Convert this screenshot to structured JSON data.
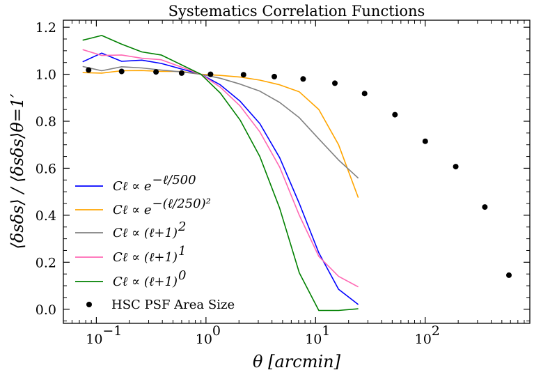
{
  "chart_data": {
    "type": "line",
    "title": "Systematics Correlation Functions",
    "xlabel": "θ [arcmin]",
    "ylabel": "⟨δsδs⟩ / ⟨δsδs⟩θ=1′",
    "x_scale": "log",
    "xlim": [
      0.05,
      900
    ],
    "ylim": [
      -0.06,
      1.23
    ],
    "x_ticks": [
      {
        "value": 0.1,
        "base": "10",
        "exp": "−1"
      },
      {
        "value": 1,
        "base": "10",
        "exp": "0"
      },
      {
        "value": 10,
        "base": "10",
        "exp": "1"
      },
      {
        "value": 100,
        "base": "10",
        "exp": "2"
      }
    ],
    "y_ticks": [
      {
        "value": 0.0,
        "label": "0.0"
      },
      {
        "value": 0.2,
        "label": "0.2"
      },
      {
        "value": 0.4,
        "label": "0.4"
      },
      {
        "value": 0.6,
        "label": "0.6"
      },
      {
        "value": 0.8,
        "label": "0.8"
      },
      {
        "value": 1.0,
        "label": "1.0"
      },
      {
        "value": 1.2,
        "label": "1.2"
      }
    ],
    "grid": false,
    "legend_position": "lower-left",
    "series": [
      {
        "name": "C_ℓ ∝ e^{−ℓ/500}",
        "legend": {
          "main": "Cℓ ∝ e",
          "sup": "−ℓ/500"
        },
        "color": "#0000ff",
        "style": "line",
        "x": [
          0.075,
          0.112,
          0.17,
          0.26,
          0.39,
          0.6,
          0.9,
          1.35,
          2.05,
          3.1,
          4.7,
          7.1,
          10.7,
          16.2,
          24.5
        ],
        "y": [
          1.053,
          1.09,
          1.055,
          1.06,
          1.046,
          1.022,
          1.0,
          0.955,
          0.885,
          0.79,
          0.645,
          0.45,
          0.24,
          0.085,
          0.02
        ]
      },
      {
        "name": "C_ℓ ∝ e^{−(ℓ/250)^2}",
        "legend": {
          "main": "Cℓ ∝ e",
          "sup": "−(ℓ/250)²"
        },
        "color": "#ffa500",
        "style": "line",
        "x": [
          0.075,
          0.112,
          0.17,
          0.26,
          0.39,
          0.6,
          0.9,
          1.35,
          2.05,
          3.1,
          4.7,
          7.1,
          10.7,
          16.2,
          24.5
        ],
        "y": [
          1.007,
          1.005,
          1.015,
          1.016,
          1.012,
          1.012,
          1.0,
          0.995,
          0.988,
          0.975,
          0.955,
          0.925,
          0.85,
          0.7,
          0.475
        ]
      },
      {
        "name": "C_ℓ ∝ (ℓ+1)^2",
        "legend": {
          "main": "Cℓ ∝ (ℓ+1)",
          "sup": "2"
        },
        "color": "#808080",
        "style": "line",
        "x": [
          0.075,
          0.112,
          0.17,
          0.26,
          0.39,
          0.6,
          0.9,
          1.35,
          2.05,
          3.1,
          4.7,
          7.1,
          10.7,
          16.2,
          24.5
        ],
        "y": [
          1.033,
          1.015,
          1.032,
          1.027,
          1.018,
          1.01,
          1.0,
          0.983,
          0.958,
          0.928,
          0.88,
          0.815,
          0.725,
          0.635,
          0.558
        ]
      },
      {
        "name": "C_ℓ ∝ (ℓ+1)^1",
        "legend": {
          "main": "Cℓ ∝ (ℓ+1)",
          "sup": "1"
        },
        "color": "#ff69b4",
        "style": "line",
        "x": [
          0.075,
          0.112,
          0.17,
          0.26,
          0.39,
          0.6,
          0.9,
          1.35,
          2.05,
          3.1,
          4.7,
          7.1,
          10.7,
          16.2,
          24.5
        ],
        "y": [
          1.105,
          1.08,
          1.082,
          1.068,
          1.062,
          1.03,
          1.0,
          0.945,
          0.865,
          0.755,
          0.605,
          0.4,
          0.225,
          0.14,
          0.095
        ]
      },
      {
        "name": "C_ℓ ∝ (ℓ+1)^0",
        "legend": {
          "main": "Cℓ ∝ (ℓ+1)",
          "sup": "0"
        },
        "color": "#008000",
        "style": "line",
        "x": [
          0.075,
          0.112,
          0.17,
          0.26,
          0.39,
          0.6,
          0.9,
          1.35,
          2.05,
          3.1,
          4.7,
          7.1,
          10.7,
          16.2,
          24.5
        ],
        "y": [
          1.145,
          1.165,
          1.128,
          1.095,
          1.082,
          1.04,
          1.0,
          0.92,
          0.805,
          0.65,
          0.43,
          0.155,
          -0.005,
          -0.005,
          0.002
        ]
      },
      {
        "name": "HSC PSF Area Size",
        "legend": {
          "main": "HSC PSF Area Size",
          "sup": ""
        },
        "color": "#000000",
        "style": "scatter",
        "x": [
          0.085,
          0.17,
          0.35,
          0.6,
          1.1,
          2.2,
          4.2,
          7.7,
          15.0,
          28.0,
          53.0,
          100.0,
          190.0,
          350.0,
          580.0
        ],
        "y": [
          1.018,
          1.012,
          1.01,
          1.005,
          1.0,
          0.998,
          0.99,
          0.98,
          0.962,
          0.918,
          0.828,
          0.715,
          0.607,
          0.435,
          0.145
        ]
      }
    ]
  }
}
